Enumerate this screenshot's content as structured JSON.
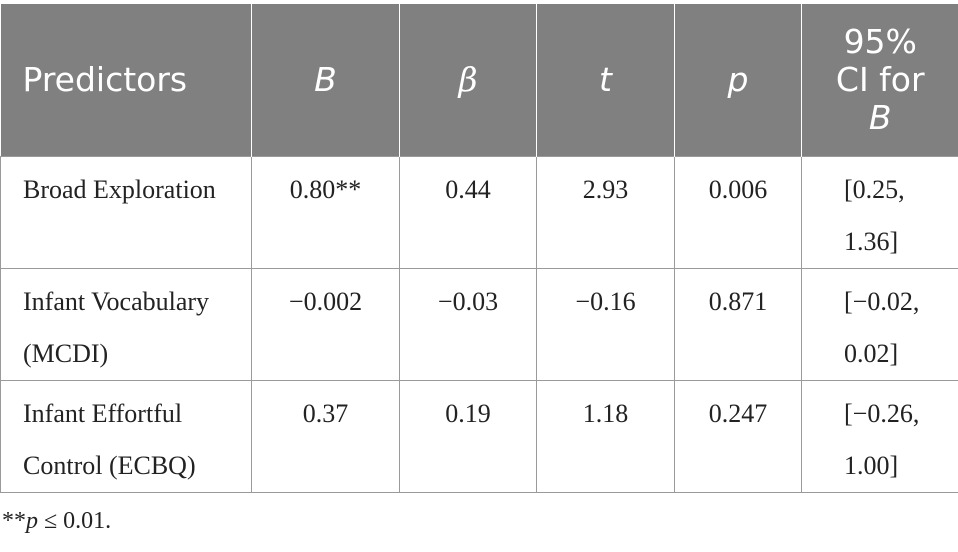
{
  "table": {
    "headers": {
      "predictors": "Predictors",
      "b": "B",
      "beta": "β",
      "t": "t",
      "p": "p",
      "ci_line1": "95%",
      "ci_line2": "CI for",
      "ci_line3": "B"
    },
    "rows": [
      {
        "predictor": "Broad Exploration",
        "b": "0.80**",
        "beta": "0.44",
        "t": "2.93",
        "p": "0.006",
        "ci_low": "[0.25,",
        "ci_high": "1.36]"
      },
      {
        "predictor": "Infant Vocabulary (MCDI)",
        "b": "−0.002",
        "beta": "−0.03",
        "t": "−0.16",
        "p": "0.871",
        "ci_low": "[−0.02,",
        "ci_high": "0.02]"
      },
      {
        "predictor": "Infant Effortful Control (ECBQ)",
        "b": "0.37",
        "beta": "0.19",
        "t": "1.18",
        "p": "0.247",
        "ci_low": "[−0.26,",
        "ci_high": "1.00]"
      }
    ]
  },
  "note": {
    "stars": "**",
    "p": "p",
    "rest": " ≤ 0.01."
  }
}
